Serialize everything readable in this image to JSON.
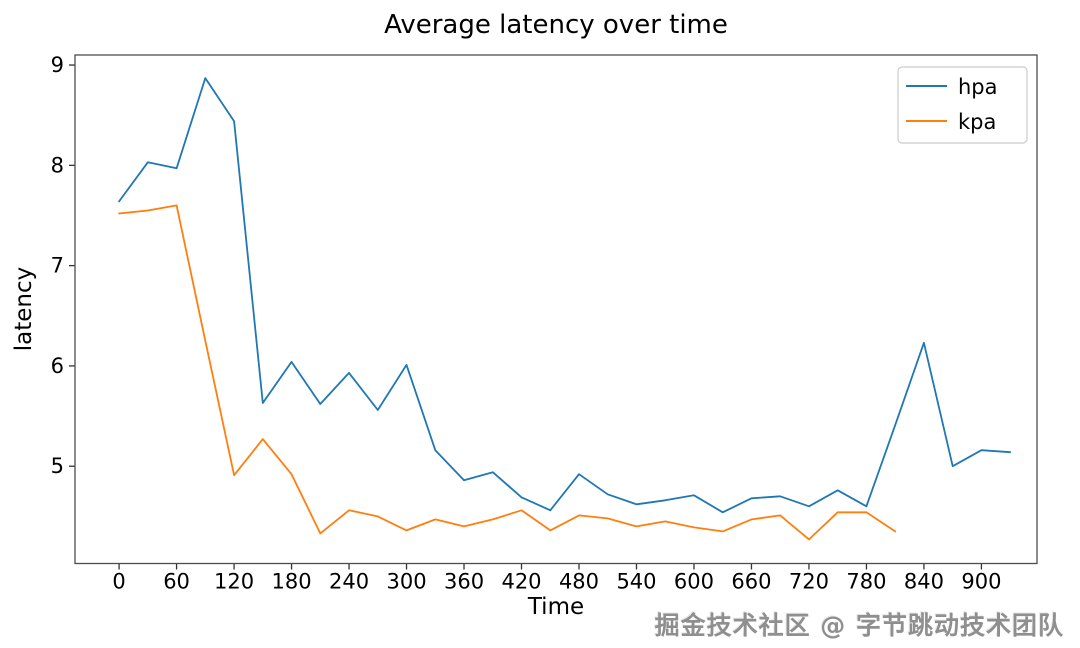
{
  "watermark": {
    "text": "掘金技术社区 @ 字节跳动技术团队"
  },
  "chart_data": {
    "type": "line",
    "title": "Average latency over time",
    "xlabel": "Time",
    "ylabel": "latency",
    "x_tick_labels": [
      0,
      60,
      120,
      180,
      240,
      300,
      360,
      420,
      480,
      540,
      600,
      660,
      720,
      780,
      840,
      900
    ],
    "y_tick_labels": [
      5,
      6,
      7,
      8,
      9
    ],
    "xlim": [
      -46,
      958
    ],
    "ylim": [
      4.03,
      9.1
    ],
    "grid": false,
    "legend": {
      "position": "upper right",
      "entries": [
        "hpa",
        "kpa"
      ]
    },
    "series": [
      {
        "name": "hpa",
        "color": "#1f77b4",
        "x": [
          0,
          30,
          60,
          90,
          120,
          150,
          180,
          210,
          240,
          270,
          300,
          330,
          360,
          390,
          420,
          450,
          480,
          510,
          540,
          570,
          600,
          630,
          660,
          690,
          720,
          750,
          780,
          810,
          840,
          870,
          900,
          930
        ],
        "values": [
          7.64,
          8.03,
          7.97,
          8.87,
          8.44,
          5.63,
          6.04,
          5.62,
          5.93,
          5.56,
          6.01,
          5.16,
          4.86,
          4.94,
          4.69,
          4.56,
          4.92,
          4.72,
          4.62,
          4.66,
          4.71,
          4.54,
          4.68,
          4.7,
          4.6,
          4.76,
          4.6,
          5.41,
          6.23,
          5.0,
          5.16,
          5.14
        ]
      },
      {
        "name": "kpa",
        "color": "#ff7f0e",
        "x": [
          0,
          30,
          60,
          90,
          120,
          150,
          180,
          210,
          240,
          270,
          300,
          330,
          360,
          390,
          420,
          450,
          480,
          510,
          540,
          570,
          600,
          630,
          660,
          690,
          720,
          750,
          780,
          810
        ],
        "values": [
          7.52,
          7.55,
          7.6,
          6.25,
          4.91,
          5.27,
          4.92,
          4.33,
          4.56,
          4.5,
          4.36,
          4.47,
          4.4,
          4.47,
          4.56,
          4.36,
          4.51,
          4.48,
          4.4,
          4.45,
          4.39,
          4.35,
          4.47,
          4.51,
          4.27,
          4.54,
          4.54,
          4.35
        ]
      }
    ]
  }
}
